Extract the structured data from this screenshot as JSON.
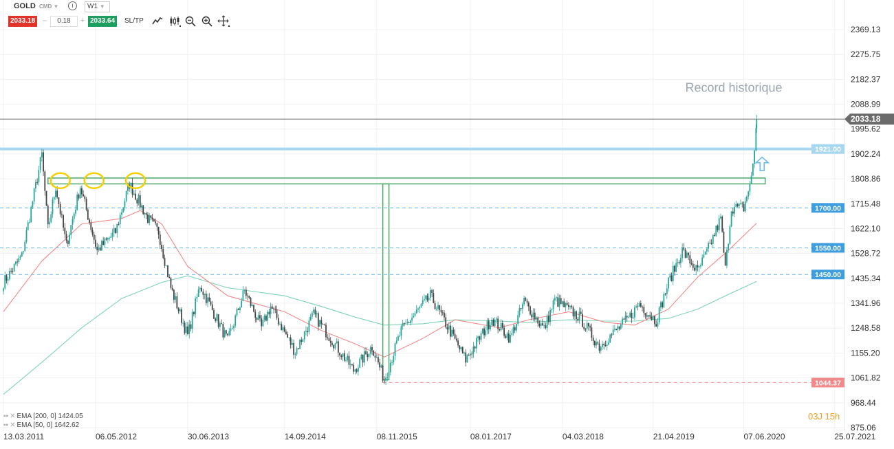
{
  "toolbar": {
    "symbol": "GOLD",
    "instrument_class": "CMD",
    "timeframe": "W1",
    "bid": "2033.18",
    "volume": "0.18",
    "ask": "2033.64",
    "sltp_label": "SL/TP",
    "minus": "–",
    "plus": "+",
    "info_glyph": "i",
    "tools": [
      "line-chart-icon",
      "candlestick-icon",
      "zoom-out-icon",
      "zoom-in-icon",
      "crosshair-icon"
    ]
  },
  "indicators": [
    {
      "label": "EMA [200, 0] 1424.05",
      "color": "#7fd3b4"
    },
    {
      "label": "EMA [50, 0] 1642.62",
      "color": "#f08a8a"
    }
  ],
  "timer": "03J 15h",
  "colors": {
    "bull": "#26a69a",
    "bear": "#444444",
    "ema50": "#f08a8a",
    "ema200": "#7fd3b4",
    "level_dashed": "#62b6e5",
    "level_solid": "#a8d8f0",
    "resistance": "#4ca86a",
    "support": "#f08a8a",
    "price_tag": "#6b6b6b",
    "annotation": "#f5d000",
    "arrow": "#6ab9e8"
  },
  "chart_data": {
    "type": "candlestick",
    "symbol": "GOLD",
    "timeframe": "W1",
    "y_ticks": [
      2369.13,
      2275.75,
      2182.37,
      2088.99,
      1995.62,
      1902.24,
      1808.86,
      1715.48,
      1622.1,
      1528.72,
      1435.34,
      1341.96,
      1248.58,
      1155.2,
      1061.82,
      968.44,
      875.06
    ],
    "y_tick_labels": [
      "2369.13",
      "2275.75",
      "2182.37",
      "2088.99",
      "1995.62",
      "1902.24",
      "1808.86",
      "1715.48",
      "1622.10",
      "1528.72",
      "1435.34",
      "1341.96",
      "1248.58",
      "1155.20",
      "1061.82",
      "968.44",
      "875.06"
    ],
    "x_ticks": [
      "13.03.2011",
      "06.05.2012",
      "30.06.2013",
      "14.09.2014",
      "08.11.2015",
      "08.01.2017",
      "04.03.2018",
      "21.04.2019",
      "07.06.2020",
      "25.07.2021"
    ],
    "anchors": [
      [
        "2011-03-13",
        1420
      ],
      [
        "2011-06-05",
        1520
      ],
      [
        "2011-09-04",
        1900
      ],
      [
        "2011-10-02",
        1620
      ],
      [
        "2011-11-06",
        1780
      ],
      [
        "2011-12-25",
        1560
      ],
      [
        "2012-02-26",
        1780
      ],
      [
        "2012-05-13",
        1540
      ],
      [
        "2012-08-05",
        1610
      ],
      [
        "2012-10-07",
        1790
      ],
      [
        "2012-12-30",
        1660
      ],
      [
        "2013-02-17",
        1610
      ],
      [
        "2013-04-14",
        1400
      ],
      [
        "2013-06-30",
        1220
      ],
      [
        "2013-08-25",
        1410
      ],
      [
        "2013-12-29",
        1200
      ],
      [
        "2014-03-16",
        1390
      ],
      [
        "2014-06-01",
        1250
      ],
      [
        "2014-07-13",
        1330
      ],
      [
        "2014-11-02",
        1160
      ],
      [
        "2015-01-25",
        1300
      ],
      [
        "2015-07-26",
        1090
      ],
      [
        "2015-10-18",
        1180
      ],
      [
        "2015-12-13",
        1055
      ],
      [
        "2016-02-28",
        1240
      ],
      [
        "2016-07-10",
        1370
      ],
      [
        "2016-12-18",
        1130
      ],
      [
        "2017-04-16",
        1285
      ],
      [
        "2017-07-09",
        1210
      ],
      [
        "2017-09-10",
        1350
      ],
      [
        "2017-12-10",
        1245
      ],
      [
        "2018-01-28",
        1355
      ],
      [
        "2018-05-20",
        1290
      ],
      [
        "2018-08-19",
        1180
      ],
      [
        "2018-12-30",
        1285
      ],
      [
        "2019-02-17",
        1340
      ],
      [
        "2019-05-05",
        1275
      ],
      [
        "2019-06-30",
        1420
      ],
      [
        "2019-09-01",
        1540
      ],
      [
        "2019-11-10",
        1460
      ],
      [
        "2020-01-05",
        1560
      ],
      [
        "2020-02-23",
        1660
      ],
      [
        "2020-03-15",
        1470
      ],
      [
        "2020-04-12",
        1700
      ],
      [
        "2020-06-07",
        1700
      ],
      [
        "2020-07-12",
        1810
      ],
      [
        "2020-07-26",
        1920
      ],
      [
        "2020-08-05",
        2033.18
      ]
    ],
    "ema50": [
      [
        "2011-03-13",
        1310
      ],
      [
        "2011-09-04",
        1500
      ],
      [
        "2012-03-04",
        1640
      ],
      [
        "2012-09-02",
        1660
      ],
      [
        "2012-11-25",
        1690
      ],
      [
        "2013-03-03",
        1640
      ],
      [
        "2013-06-30",
        1480
      ],
      [
        "2013-12-29",
        1370
      ],
      [
        "2014-09-14",
        1310
      ],
      [
        "2015-03-01",
        1240
      ],
      [
        "2015-08-02",
        1190
      ],
      [
        "2015-12-13",
        1140
      ],
      [
        "2016-06-05",
        1210
      ],
      [
        "2016-10-30",
        1280
      ],
      [
        "2017-05-21",
        1250
      ],
      [
        "2017-10-01",
        1280
      ],
      [
        "2018-04-01",
        1310
      ],
      [
        "2018-09-16",
        1270
      ],
      [
        "2019-01-27",
        1260
      ],
      [
        "2019-06-30",
        1320
      ],
      [
        "2019-11-10",
        1440
      ],
      [
        "2020-03-29",
        1540
      ],
      [
        "2020-08-05",
        1642.62
      ]
    ],
    "ema200": [
      [
        "2011-03-13",
        1000
      ],
      [
        "2011-09-04",
        1120
      ],
      [
        "2012-03-04",
        1250
      ],
      [
        "2012-09-02",
        1360
      ],
      [
        "2013-03-03",
        1420
      ],
      [
        "2013-06-30",
        1445
      ],
      [
        "2013-12-29",
        1400
      ],
      [
        "2014-09-14",
        1370
      ],
      [
        "2015-03-01",
        1330
      ],
      [
        "2015-08-02",
        1290
      ],
      [
        "2015-12-13",
        1260
      ],
      [
        "2016-06-05",
        1265
      ],
      [
        "2016-10-30",
        1280
      ],
      [
        "2017-05-21",
        1275
      ],
      [
        "2017-10-01",
        1270
      ],
      [
        "2018-04-01",
        1280
      ],
      [
        "2018-09-16",
        1275
      ],
      [
        "2019-01-27",
        1275
      ],
      [
        "2019-06-30",
        1285
      ],
      [
        "2019-11-10",
        1320
      ],
      [
        "2020-03-29",
        1375
      ],
      [
        "2020-08-05",
        1424.05
      ]
    ],
    "horizontal_levels": [
      {
        "value": 1921.0,
        "label": "1921.00",
        "style": "solid"
      },
      {
        "value": 1700.0,
        "label": "1700.00",
        "style": "dashed"
      },
      {
        "value": 1550.0,
        "label": "1550.00",
        "style": "dashed"
      },
      {
        "value": 1450.0,
        "label": "1450.00",
        "style": "dashed"
      },
      {
        "value": 1044.37,
        "label": "1044.37",
        "style": "support"
      }
    ],
    "current_price": {
      "value": 2033.18,
      "label": "2033.18"
    },
    "resistance_zone": {
      "from": "2011-10-02",
      "to": "2020-09-13",
      "low": 1790,
      "high": 1812
    },
    "vertical_box": {
      "from": "2015-12-06",
      "to": "2016-01-03",
      "low": 1055,
      "high": 1790
    },
    "annotation_circles": [
      {
        "date": "2011-11-27",
        "value": 1802
      },
      {
        "date": "2012-04-29",
        "value": 1802
      },
      {
        "date": "2012-11-04",
        "value": 1802
      }
    ],
    "arrow": {
      "date": "2020-08-30",
      "from": 1840,
      "to": 1890
    },
    "annotation_text": "Record historique",
    "annotation_text_anchor": {
      "date": "2020-06-07",
      "value": 2135
    }
  }
}
